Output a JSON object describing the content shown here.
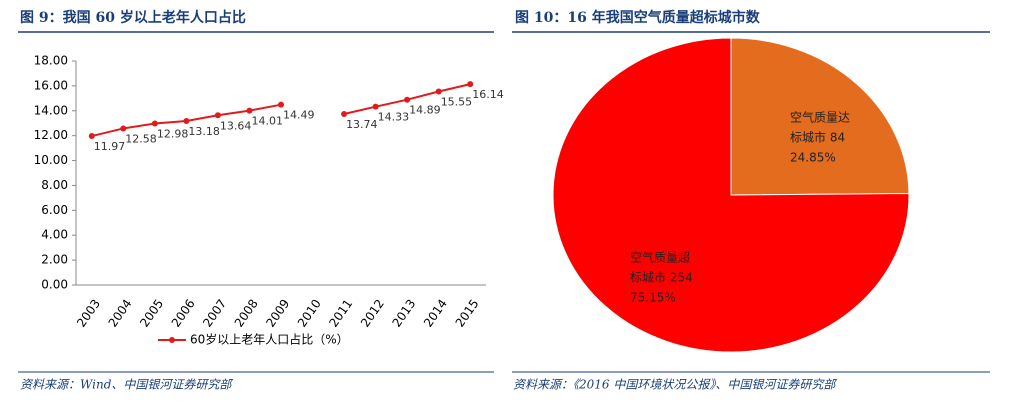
{
  "chart_data": [
    {
      "type": "line",
      "title": "图 9：我国 60 岁以上老年人口占比",
      "categories": [
        "2003",
        "2004",
        "2005",
        "2006",
        "2007",
        "2008",
        "2009",
        "2010",
        "2011",
        "2012",
        "2013",
        "2014",
        "2015"
      ],
      "series": [
        {
          "name": "60岁以上老年人口占比（%）",
          "color": "#e31a1c",
          "values": [
            11.97,
            12.58,
            12.98,
            13.18,
            13.64,
            14.01,
            14.49,
            null,
            13.74,
            14.33,
            14.89,
            15.55,
            16.14
          ]
        }
      ],
      "ylim": [
        0,
        18
      ],
      "yticks": [
        {
          "value": 0,
          "label": "0.00"
        },
        {
          "value": 2,
          "label": "2.00"
        },
        {
          "value": 4,
          "label": "4.00"
        },
        {
          "value": 6,
          "label": "6.00"
        },
        {
          "value": 8,
          "label": "8.00"
        },
        {
          "value": 10,
          "label": "10.00"
        },
        {
          "value": 12,
          "label": "12.00"
        },
        {
          "value": 14,
          "label": "14.00"
        },
        {
          "value": 16,
          "label": "16.00"
        },
        {
          "value": 18,
          "label": "18.00"
        }
      ],
      "source": "资料来源：Wind、中国银河证券研究部"
    },
    {
      "type": "pie",
      "title": "图 10：16 年我国空气质量超标城市数",
      "categories": [
        [
          "空气质量达",
          "标城市 84"
        ],
        [
          "空气质量超",
          "标城市 254"
        ]
      ],
      "values": [
        24.85,
        75.15
      ],
      "value_labels": [
        "24.85%",
        "75.15%"
      ],
      "colors": [
        "#e36c1e",
        "#ff0000"
      ],
      "source": "资料来源：《2016 中国环境状况公报》、中国银河证券研究部"
    }
  ]
}
